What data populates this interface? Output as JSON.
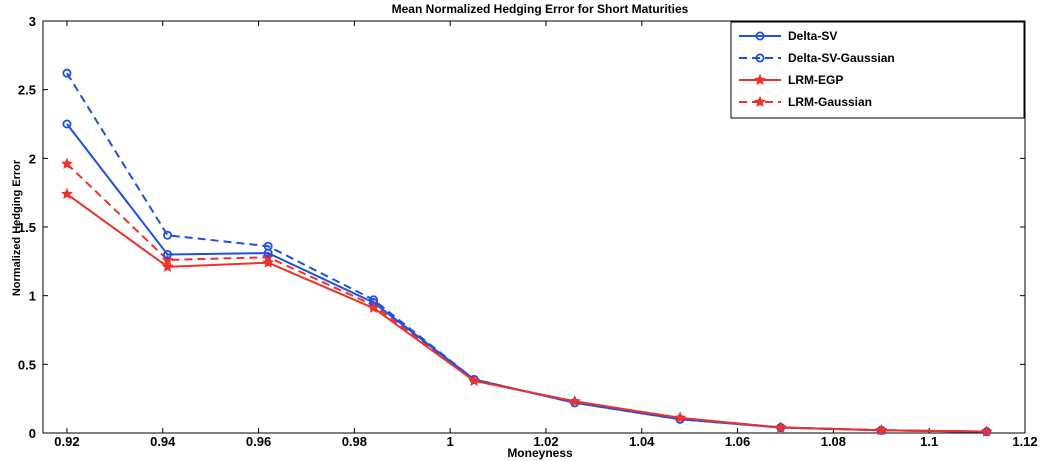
{
  "chart_data": {
    "type": "line",
    "title": "Mean Normalized Hedging Error for Short Maturities",
    "xlabel": "Moneyness",
    "ylabel": "Normalized Hedging Error",
    "xlim": [
      0.915,
      1.12
    ],
    "ylim": [
      0,
      3
    ],
    "xticks": [
      0.92,
      0.94,
      0.96,
      0.98,
      1,
      1.02,
      1.04,
      1.06,
      1.08,
      1.1,
      1.12
    ],
    "xtick_labels": [
      "0.92",
      "0.94",
      "0.96",
      "0.98",
      "1",
      "1.02",
      "1.04",
      "1.06",
      "1.08",
      "1.1",
      "1.12"
    ],
    "yticks": [
      0,
      0.5,
      1,
      1.5,
      2,
      2.5,
      3
    ],
    "ytick_labels": [
      "0",
      "0.5",
      "1",
      "1.5",
      "2",
      "2.5",
      "3"
    ],
    "grid": false,
    "legend_position": "top-right",
    "x": [
      0.92,
      0.941,
      0.962,
      0.984,
      1.005,
      1.026,
      1.048,
      1.069,
      1.09,
      1.112
    ],
    "series": [
      {
        "name": "Delta-SV",
        "color": "#1f4fe6",
        "line": "solid",
        "marker": "circle",
        "values": [
          2.25,
          1.3,
          1.31,
          0.95,
          0.39,
          0.22,
          0.1,
          0.04,
          0.02,
          0.01
        ]
      },
      {
        "name": "Delta-SV-Gaussian",
        "color": "#1f4fe6",
        "line": "dashed",
        "marker": "circle",
        "values": [
          2.62,
          1.44,
          1.36,
          0.97,
          0.39,
          0.22,
          0.1,
          0.04,
          0.02,
          0.01
        ]
      },
      {
        "name": "LRM-EGP",
        "color": "#f0302a",
        "line": "solid",
        "marker": "star",
        "values": [
          1.74,
          1.21,
          1.24,
          0.91,
          0.38,
          0.23,
          0.11,
          0.04,
          0.02,
          0.01
        ]
      },
      {
        "name": "LRM-Gaussian",
        "color": "#f0302a",
        "line": "dashed",
        "marker": "star",
        "values": [
          1.96,
          1.26,
          1.28,
          0.93,
          0.38,
          0.23,
          0.11,
          0.04,
          0.02,
          0.01
        ]
      }
    ]
  }
}
